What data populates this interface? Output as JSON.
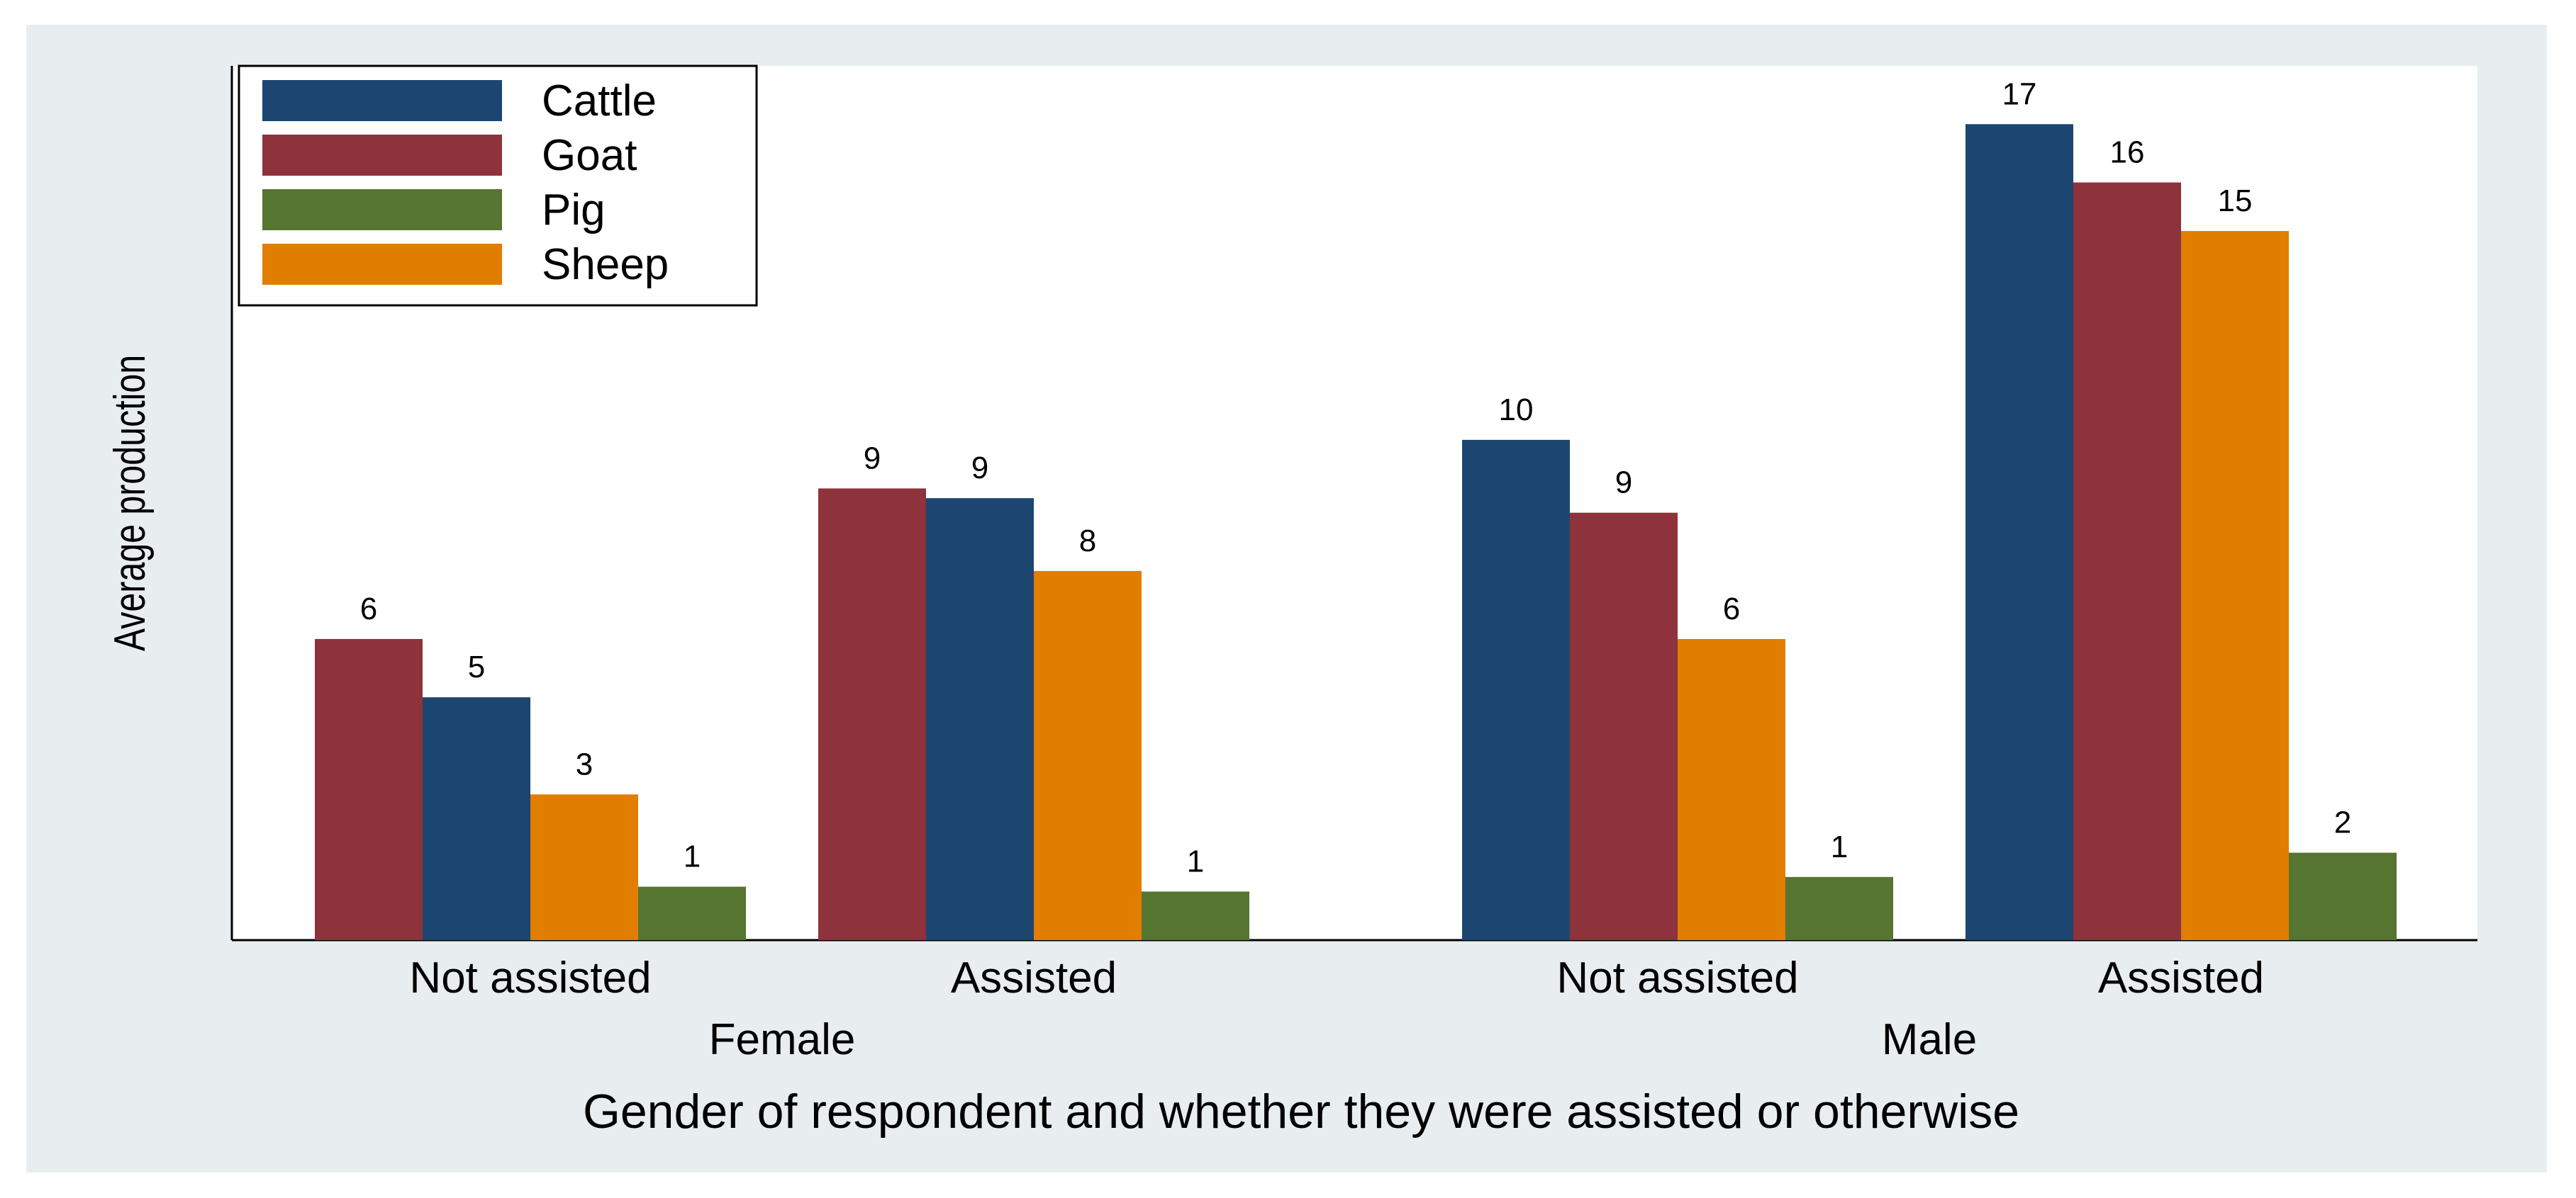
{
  "chart_data": {
    "type": "bar",
    "ylabel": "Average production",
    "xlabel": "Gender of respondent and whether they were assisted or otherwise",
    "ylim": [
      0,
      18
    ],
    "grid": false,
    "legend_position": "top-left",
    "series_info": [
      {
        "name": "Cattle",
        "color": "#1c4670"
      },
      {
        "name": "Goat",
        "color": "#8e323c"
      },
      {
        "name": "Pig",
        "color": "#557530"
      },
      {
        "name": "Sheep",
        "color": "#e17e00"
      }
    ],
    "groups": [
      {
        "gender": "Female",
        "subgroups": [
          {
            "label": "Not assisted",
            "bars": [
              {
                "series": "Goat",
                "value": 6.2,
                "label": "6"
              },
              {
                "series": "Cattle",
                "value": 5.0,
                "label": "5"
              },
              {
                "series": "Sheep",
                "value": 3.0,
                "label": "3"
              },
              {
                "series": "Pig",
                "value": 1.1,
                "label": "1"
              }
            ]
          },
          {
            "label": "Assisted",
            "bars": [
              {
                "series": "Goat",
                "value": 9.3,
                "label": "9"
              },
              {
                "series": "Cattle",
                "value": 9.1,
                "label": "9"
              },
              {
                "series": "Sheep",
                "value": 7.6,
                "label": "8"
              },
              {
                "series": "Pig",
                "value": 1.0,
                "label": "1"
              }
            ]
          }
        ]
      },
      {
        "gender": "Male",
        "subgroups": [
          {
            "label": "Not assisted",
            "bars": [
              {
                "series": "Cattle",
                "value": 10.3,
                "label": "10"
              },
              {
                "series": "Goat",
                "value": 8.8,
                "label": "9"
              },
              {
                "series": "Sheep",
                "value": 6.2,
                "label": "6"
              },
              {
                "series": "Pig",
                "value": 1.3,
                "label": "1"
              }
            ]
          },
          {
            "label": "Assisted",
            "bars": [
              {
                "series": "Cattle",
                "value": 16.8,
                "label": "17"
              },
              {
                "series": "Goat",
                "value": 15.6,
                "label": "16"
              },
              {
                "series": "Sheep",
                "value": 14.6,
                "label": "15"
              },
              {
                "series": "Pig",
                "value": 1.8,
                "label": "2"
              }
            ]
          }
        ]
      }
    ]
  }
}
